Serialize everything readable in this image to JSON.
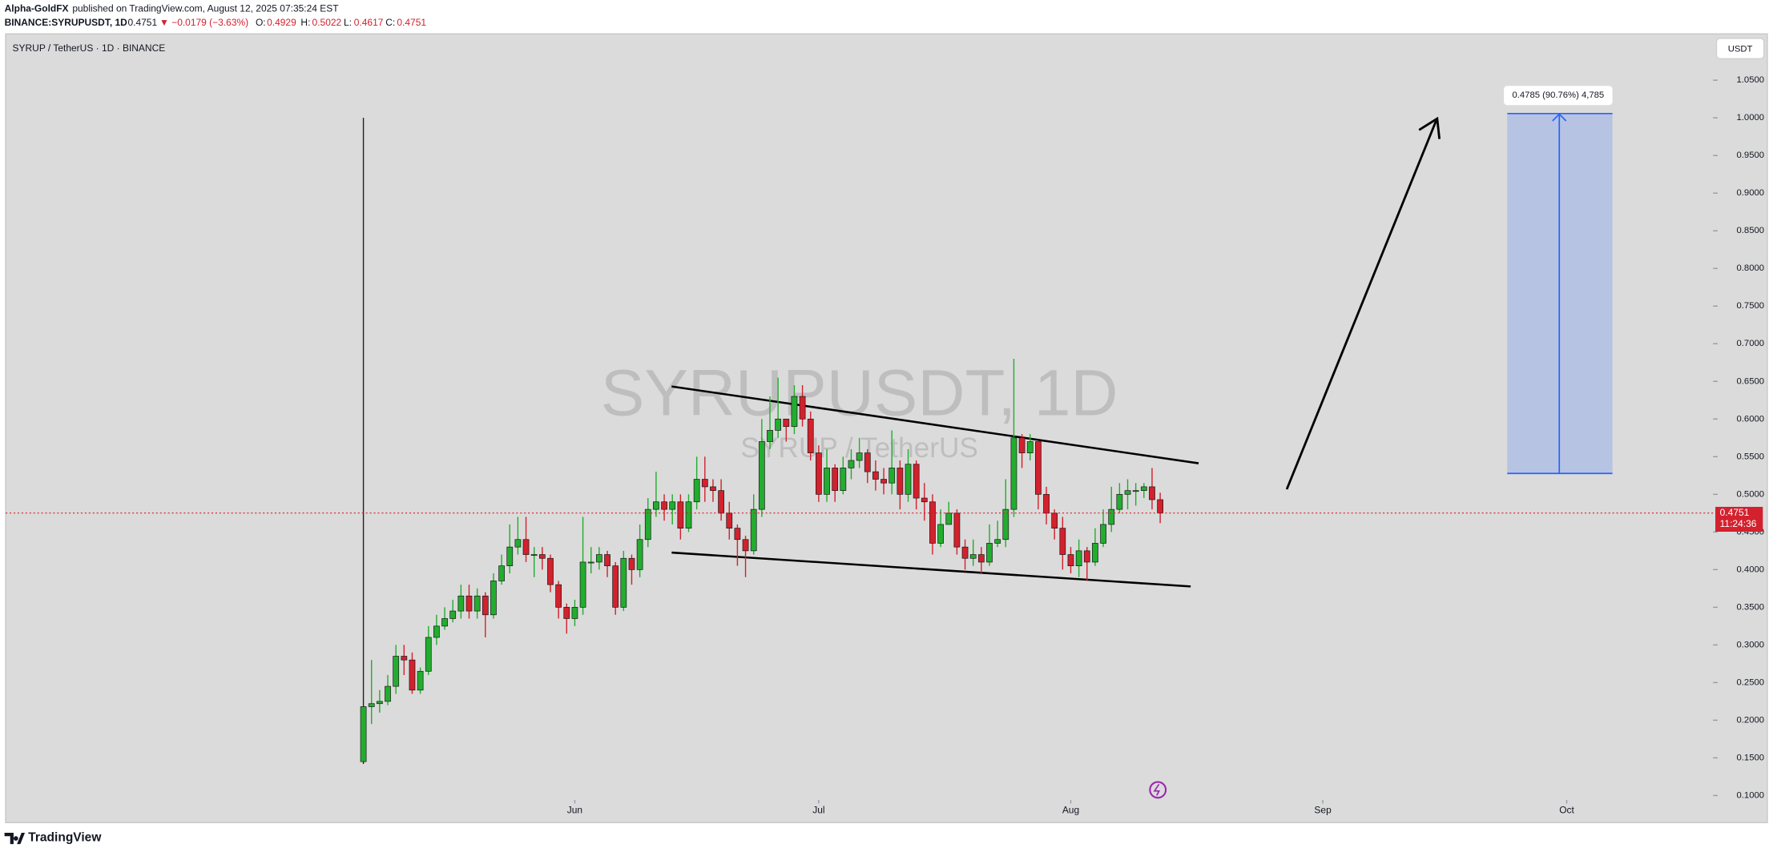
{
  "header": {
    "publisher": "Alpha-GoldFX",
    "published": "published on TradingView.com, August 12, 2025 07:35:24 EST",
    "symbol": "BINANCE:SYRUPUSDT, 1D",
    "change": "▼ −0.0179 (−3.63%)",
    "o_label": "O:",
    "h_label": "H:",
    "l_label": "L:",
    "c_label": "C:"
  },
  "footer": {
    "brand": "TradingView"
  },
  "chart_data": {
    "type": "candlestick",
    "title": "SYRUP / TetherUS · 1D · BINANCE",
    "watermark": "SYRUPUSDT, 1D",
    "watermark_sub": "SYRUP / TetherUS",
    "currency": "USDT",
    "annotation": "0.4785 (90.76%) 4,785",
    "countdown": "11:24:36",
    "up_color": "#22ad2e",
    "down_color": "#d3212d",
    "xlim": [
      -44,
      166
    ],
    "xticks": [
      {
        "value": 26,
        "label": "Jun"
      },
      {
        "value": 56,
        "label": "Jul"
      },
      {
        "value": 87,
        "label": "Aug"
      },
      {
        "value": 118,
        "label": "Sep"
      },
      {
        "value": 148,
        "label": "Oct"
      }
    ],
    "ylim": [
      0.094,
      1.1115
    ],
    "yticks": [
      {
        "value": 0.1,
        "label": "0.1000"
      },
      {
        "value": 0.15,
        "label": "0.1500"
      },
      {
        "value": 0.2,
        "label": "0.2000"
      },
      {
        "value": 0.25,
        "label": "0.2500"
      },
      {
        "value": 0.3,
        "label": "0.3000"
      },
      {
        "value": 0.35,
        "label": "0.3500"
      },
      {
        "value": 0.4,
        "label": "0.4000"
      },
      {
        "value": 0.45,
        "label": "0.4500"
      },
      {
        "value": 0.5,
        "label": "0.5000"
      },
      {
        "value": 0.55,
        "label": "0.5500"
      },
      {
        "value": 0.6,
        "label": "0.6000"
      },
      {
        "value": 0.65,
        "label": "0.6500"
      },
      {
        "value": 0.7,
        "label": "0.7000"
      },
      {
        "value": 0.75,
        "label": "0.7500"
      },
      {
        "value": 0.8,
        "label": "0.8000"
      },
      {
        "value": 0.85,
        "label": "0.8500"
      },
      {
        "value": 0.9,
        "label": "0.9000"
      },
      {
        "value": 0.95,
        "label": "0.9500"
      },
      {
        "value": 1.0,
        "label": "1.0000"
      },
      {
        "value": 1.05,
        "label": "1.0500"
      }
    ],
    "open": [
      0.145,
      0.218,
      0.222,
      0.225,
      0.245,
      0.285,
      0.28,
      0.24,
      0.265,
      0.31,
      0.325,
      0.335,
      0.345,
      0.365,
      0.345,
      0.365,
      0.34,
      0.385,
      0.405,
      0.43,
      0.44,
      0.42,
      0.42,
      0.415,
      0.38,
      0.35,
      0.335,
      0.35,
      0.41,
      0.41,
      0.42,
      0.405,
      0.35,
      0.415,
      0.4,
      0.44,
      0.48,
      0.49,
      0.48,
      0.49,
      0.455,
      0.49,
      0.52,
      0.51,
      0.505,
      0.475,
      0.455,
      0.44,
      0.425,
      0.48,
      0.57,
      0.585,
      0.6,
      0.59,
      0.63,
      0.6,
      0.555,
      0.5,
      0.535,
      0.505,
      0.535,
      0.545,
      0.555,
      0.53,
      0.52,
      0.515,
      0.535,
      0.5,
      0.54,
      0.495,
      0.49,
      0.435,
      0.46,
      0.475,
      0.43,
      0.415,
      0.42,
      0.41,
      0.435,
      0.44,
      0.48,
      0.575,
      0.555,
      0.57,
      0.5,
      0.475,
      0.455,
      0.42,
      0.405,
      0.425,
      0.41,
      0.435,
      0.46,
      0.48,
      0.5,
      0.505,
      0.505,
      0.51,
      0.4929
    ],
    "high": [
      1.0,
      0.28,
      0.24,
      0.26,
      0.3,
      0.3,
      0.29,
      0.27,
      0.325,
      0.34,
      0.35,
      0.36,
      0.38,
      0.38,
      0.375,
      0.37,
      0.395,
      0.42,
      0.46,
      0.47,
      0.47,
      0.43,
      0.43,
      0.42,
      0.385,
      0.355,
      0.36,
      0.47,
      0.43,
      0.43,
      0.425,
      0.41,
      0.425,
      0.42,
      0.46,
      0.495,
      0.53,
      0.5,
      0.5,
      0.5,
      0.5,
      0.55,
      0.55,
      0.52,
      0.52,
      0.49,
      0.46,
      0.445,
      0.5,
      0.6,
      0.63,
      0.655,
      0.6,
      0.645,
      0.645,
      0.61,
      0.565,
      0.56,
      0.54,
      0.55,
      0.56,
      0.575,
      0.56,
      0.545,
      0.535,
      0.585,
      0.545,
      0.56,
      0.545,
      0.515,
      0.5,
      0.48,
      0.49,
      0.48,
      0.44,
      0.44,
      0.43,
      0.46,
      0.465,
      0.52,
      0.68,
      0.58,
      0.58,
      0.57,
      0.51,
      0.48,
      0.47,
      0.43,
      0.44,
      0.43,
      0.455,
      0.48,
      0.51,
      0.515,
      0.52,
      0.515,
      0.515,
      0.535,
      0.5022
    ],
    "low": [
      0.142,
      0.195,
      0.21,
      0.22,
      0.235,
      0.26,
      0.235,
      0.235,
      0.26,
      0.3,
      0.32,
      0.33,
      0.335,
      0.335,
      0.335,
      0.31,
      0.335,
      0.38,
      0.395,
      0.42,
      0.41,
      0.39,
      0.4,
      0.37,
      0.335,
      0.315,
      0.325,
      0.34,
      0.395,
      0.4,
      0.39,
      0.34,
      0.345,
      0.38,
      0.39,
      0.43,
      0.47,
      0.465,
      0.46,
      0.44,
      0.45,
      0.48,
      0.49,
      0.49,
      0.465,
      0.44,
      0.405,
      0.39,
      0.42,
      0.47,
      0.56,
      0.575,
      0.57,
      0.58,
      0.59,
      0.545,
      0.49,
      0.49,
      0.49,
      0.5,
      0.52,
      0.535,
      0.515,
      0.505,
      0.5,
      0.5,
      0.48,
      0.49,
      0.48,
      0.465,
      0.42,
      0.43,
      0.46,
      0.42,
      0.4,
      0.405,
      0.395,
      0.405,
      0.43,
      0.43,
      0.47,
      0.535,
      0.545,
      0.48,
      0.46,
      0.44,
      0.4,
      0.395,
      0.39,
      0.385,
      0.405,
      0.43,
      0.45,
      0.475,
      0.48,
      0.485,
      0.495,
      0.48,
      0.4617
    ],
    "close": [
      0.218,
      0.222,
      0.225,
      0.245,
      0.285,
      0.28,
      0.24,
      0.265,
      0.31,
      0.325,
      0.335,
      0.345,
      0.365,
      0.345,
      0.365,
      0.34,
      0.385,
      0.405,
      0.43,
      0.44,
      0.42,
      0.42,
      0.415,
      0.38,
      0.35,
      0.335,
      0.35,
      0.41,
      0.41,
      0.42,
      0.405,
      0.35,
      0.415,
      0.4,
      0.44,
      0.48,
      0.49,
      0.48,
      0.49,
      0.455,
      0.49,
      0.52,
      0.51,
      0.505,
      0.475,
      0.455,
      0.44,
      0.425,
      0.48,
      0.57,
      0.585,
      0.6,
      0.59,
      0.63,
      0.6,
      0.555,
      0.5,
      0.535,
      0.505,
      0.535,
      0.545,
      0.555,
      0.53,
      0.52,
      0.515,
      0.535,
      0.5,
      0.54,
      0.495,
      0.49,
      0.435,
      0.46,
      0.475,
      0.43,
      0.415,
      0.42,
      0.41,
      0.435,
      0.44,
      0.48,
      0.575,
      0.555,
      0.57,
      0.5,
      0.475,
      0.455,
      0.42,
      0.405,
      0.425,
      0.41,
      0.435,
      0.46,
      0.48,
      0.5,
      0.505,
      0.505,
      0.51,
      0.4929,
      0.4751
    ]
  }
}
